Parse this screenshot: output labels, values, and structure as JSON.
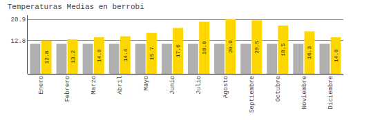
{
  "chart_data": {
    "type": "bar",
    "title": "Temperaturas Medias en berrobi",
    "categories": [
      "Enero",
      "Febrero",
      "Marzo",
      "Abril",
      "Mayo",
      "Junio",
      "Julio",
      "Agosto",
      "Septiembre",
      "Octubre",
      "Noviembre",
      "Diciembre"
    ],
    "series": [
      {
        "color": "#B0B0B0",
        "values": [
          11.5,
          11.5,
          11.5,
          11.5,
          11.5,
          11.5,
          11.5,
          11.5,
          11.5,
          11.5,
          11.5,
          11.5
        ]
      },
      {
        "color": "#FFD700",
        "values": [
          12.8,
          13.2,
          14.0,
          14.4,
          15.7,
          17.6,
          20.0,
          20.9,
          20.5,
          18.5,
          16.3,
          14.0
        ],
        "value_labels": [
          "12.8",
          "13.2",
          "14.0",
          "14.4",
          "15.7",
          "17.6",
          "20.0",
          "20.9",
          "20.5",
          "18.5",
          "16.3",
          "14.0"
        ],
        "data_labels": true
      }
    ],
    "ylim": [
      0,
      22.5
    ],
    "yticks": [
      12.8,
      20.9
    ],
    "y2lim": [
      0,
      22.5
    ],
    "y2ticks": [
      12.8,
      20.9
    ],
    "grid": true
  }
}
